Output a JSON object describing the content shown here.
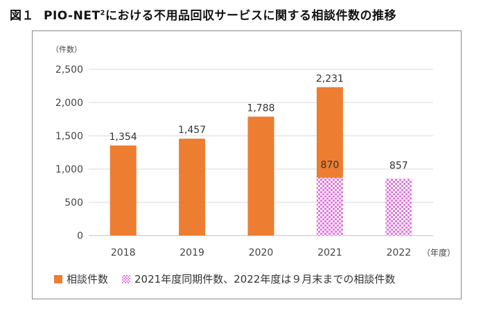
{
  "figure": {
    "label": "図１",
    "title_main": "PIO-NET",
    "title_sup": "2",
    "title_rest": "における不用品回収サービスに関する相談件数の推移"
  },
  "colors": {
    "bar": "#ED7D31",
    "pattern": "#E27AE0",
    "grid": "#d9d9d9",
    "axis": "#bfbfbf"
  },
  "chart_data": {
    "type": "bar",
    "title": "PIO-NET2における不用品回収サービスに関する相談件数の推移",
    "ylabel": "（件数）",
    "xlabel": "（年度）",
    "ylim": [
      0,
      2500
    ],
    "yticks": [
      0,
      500,
      1000,
      1500,
      2000,
      2500
    ],
    "ytick_labels": [
      "0",
      "500",
      "1,000",
      "1,500",
      "2,000",
      "2,500"
    ],
    "categories": [
      "2018",
      "2019",
      "2020",
      "2021",
      "2022"
    ],
    "series": [
      {
        "name": "相談件数",
        "style": "solid",
        "values": [
          1354,
          1457,
          1788,
          2231,
          null
        ],
        "labels": [
          "1,354",
          "1,457",
          "1,788",
          "2,231",
          ""
        ]
      },
      {
        "name": "2021年度同期件数、2022年度は９月末までの相談件数",
        "style": "checker",
        "values": [
          null,
          null,
          null,
          870,
          857
        ],
        "labels": [
          "",
          "",
          "",
          "870",
          "857"
        ]
      }
    ],
    "legend_position": "bottom"
  }
}
